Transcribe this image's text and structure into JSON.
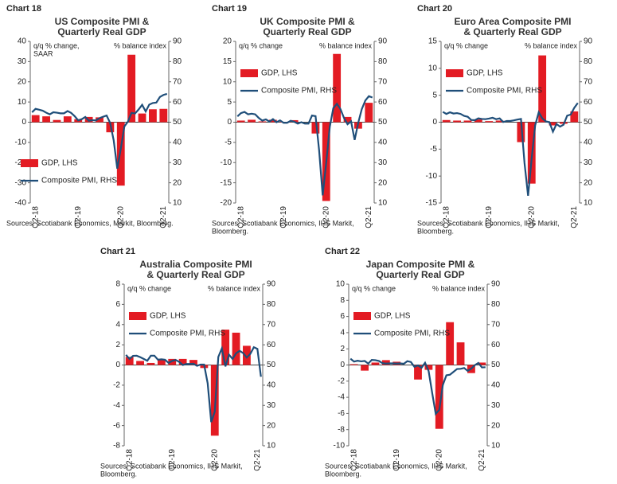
{
  "chart_data": [
    {
      "label": "Chart 18",
      "type": "bar",
      "title": [
        "US Composite PMI &",
        "Quarterly Real GDP"
      ],
      "y_label": [
        "q/q % change,",
        "SAAR"
      ],
      "y2_label": "% balance index",
      "categories": [
        null,
        "Q2-18",
        null,
        null,
        null,
        null,
        null,
        null,
        null,
        null,
        null,
        null,
        null,
        "Q2-19",
        null,
        null,
        null,
        null,
        null,
        null,
        null,
        null,
        null,
        null,
        null,
        "Q2-20",
        null,
        null,
        null,
        null,
        null,
        null,
        null,
        null,
        null,
        null,
        null,
        "Q2-21",
        null
      ],
      "series": [
        {
          "name": "GDP, LHS",
          "color": "#e31b23",
          "values": [
            null,
            3.5,
            null,
            null,
            2.9,
            null,
            null,
            1.1,
            null,
            null,
            2.9,
            null,
            null,
            1.5,
            null,
            null,
            2.6,
            null,
            null,
            2.4,
            null,
            null,
            -5.0,
            null,
            null,
            -31.4,
            null,
            null,
            33.4,
            null,
            null,
            4.3,
            null,
            null,
            6.4,
            null,
            null,
            6.6,
            null
          ]
        },
        {
          "name": "Composite PMI, RHS",
          "color": "#1f4e79",
          "type": "line",
          "axis": "y2",
          "values": [
            54.9,
            56.6,
            56.2,
            55.7,
            54.7,
            53.9,
            54.9,
            54.7,
            54.4,
            54.4,
            55.5,
            54.6,
            53.0,
            50.9,
            51.5,
            52.6,
            50.7,
            51.0,
            50.9,
            52.0,
            52.7,
            53.3,
            49.6,
            40.9,
            27.0,
            37.0,
            47.9,
            50.3,
            54.6,
            54.3,
            56.3,
            58.6,
            55.3,
            58.7,
            59.5,
            59.7,
            62.5,
            63.5,
            64.0
          ]
        }
      ],
      "ylim": [
        -40,
        40
      ],
      "yticks": [
        -40,
        -30,
        -20,
        -10,
        0,
        10,
        20,
        30,
        40
      ],
      "y2lim": [
        10,
        90
      ],
      "y2ticks": [
        10,
        20,
        30,
        40,
        50,
        60,
        70,
        80,
        90
      ],
      "legend": "lower left",
      "source": [
        "Sources: Scotiabank Economics, Markit, Bloomberg."
      ]
    },
    {
      "label": "Chart 19",
      "type": "bar",
      "title": [
        "UK Composite PMI &",
        "Quarterly Real GDP"
      ],
      "y_label": [
        "q/q % change"
      ],
      "y2_label": "% balance index",
      "categories": [
        null,
        "Q2-18",
        null,
        null,
        null,
        null,
        null,
        null,
        null,
        null,
        null,
        null,
        null,
        "Q2-19",
        null,
        null,
        null,
        null,
        null,
        null,
        null,
        null,
        null,
        null,
        null,
        "Q2-20",
        null,
        null,
        null,
        null,
        null,
        null,
        null,
        null,
        null,
        null,
        null,
        "Q2-21",
        null
      ],
      "series": [
        {
          "name": "GDP, LHS",
          "color": "#e31b23",
          "values": [
            null,
            0.4,
            null,
            null,
            0.6,
            null,
            null,
            0.2,
            null,
            null,
            0.6,
            null,
            null,
            -0.1,
            null,
            null,
            0.5,
            null,
            null,
            0.0,
            null,
            null,
            -2.8,
            null,
            null,
            -19.5,
            null,
            null,
            16.9,
            null,
            null,
            1.3,
            null,
            null,
            -1.6,
            null,
            null,
            4.8,
            null
          ]
        },
        {
          "name": "Composite PMI, RHS",
          "color": "#1f4e79",
          "type": "line",
          "axis": "y2",
          "values": [
            52.9,
            54.5,
            55.1,
            53.9,
            54.2,
            53.9,
            52.1,
            50.8,
            51.4,
            50.3,
            51.5,
            50.0,
            50.9,
            49.7,
            49.7,
            50.7,
            50.2,
            49.3,
            50.0,
            49.3,
            49.3,
            53.3,
            53.0,
            36.0,
            13.8,
            30.0,
            47.7,
            57.0,
            59.1,
            56.5,
            52.1,
            49.0,
            50.4,
            41.2,
            49.6,
            56.4,
            60.7,
            62.9,
            62.2
          ]
        }
      ],
      "ylim": [
        -20,
        20
      ],
      "yticks": [
        -20,
        -15,
        -10,
        -5,
        0,
        5,
        10,
        15,
        20
      ],
      "y2lim": [
        10,
        90
      ],
      "y2ticks": [
        10,
        20,
        30,
        40,
        50,
        60,
        70,
        80,
        90
      ],
      "legend": "upper left",
      "source": [
        "Sources: Scotiabank Economics, IHS Markit,",
        "Bloomberg."
      ]
    },
    {
      "label": "Chart 20",
      "type": "bar",
      "title": [
        "Euro Area Composite PMI",
        "& Quarterly Real GDP"
      ],
      "y_label": [
        "q/q % change"
      ],
      "y2_label": "% balance index",
      "categories": [
        null,
        "Q2-18",
        null,
        null,
        null,
        null,
        null,
        null,
        null,
        null,
        null,
        null,
        null,
        "Q2-19",
        null,
        null,
        null,
        null,
        null,
        null,
        null,
        null,
        null,
        null,
        null,
        "Q2-20",
        null,
        null,
        null,
        null,
        null,
        null,
        null,
        null,
        null,
        null,
        null,
        "Q2-21",
        null
      ],
      "series": [
        {
          "name": "GDP, LHS",
          "color": "#e31b23",
          "values": [
            null,
            0.4,
            null,
            null,
            0.3,
            null,
            null,
            0.3,
            null,
            null,
            0.5,
            null,
            null,
            0.2,
            null,
            null,
            0.3,
            null,
            null,
            0.0,
            null,
            null,
            -3.7,
            null,
            null,
            -11.4,
            null,
            null,
            12.4,
            null,
            null,
            -0.6,
            null,
            null,
            -0.3,
            null,
            null,
            2.0,
            null
          ]
        },
        {
          "name": "Composite PMI, RHS",
          "color": "#1f4e79",
          "type": "line",
          "axis": "y2",
          "values": [
            55.1,
            54.1,
            54.9,
            54.3,
            54.5,
            54.1,
            53.1,
            52.7,
            51.1,
            51.0,
            51.9,
            51.6,
            51.5,
            51.8,
            52.2,
            51.5,
            51.9,
            50.1,
            50.6,
            50.6,
            50.9,
            51.3,
            51.6,
            29.7,
            13.6,
            31.9,
            48.5,
            54.9,
            51.9,
            50.4,
            50.0,
            45.3,
            49.1,
            47.8,
            48.8,
            53.2,
            53.8,
            57.1,
            59.5
          ]
        }
      ],
      "ylim": [
        -15,
        15
      ],
      "yticks": [
        -15,
        -10,
        -5,
        0,
        5,
        10,
        15
      ],
      "y2lim": [
        10,
        90
      ],
      "y2ticks": [
        10,
        20,
        30,
        40,
        50,
        60,
        70,
        80,
        90
      ],
      "legend": "upper left",
      "source": [
        "Sources: Scotiabank Economics, IHS Markit,",
        "Bloomberg."
      ]
    },
    {
      "label": "Chart 21",
      "type": "bar",
      "title": [
        "Australia Composite PMI",
        "& Quarterly Real GDP"
      ],
      "y_label": [
        "q/q % change"
      ],
      "y2_label": "% balance index",
      "categories": [
        null,
        "Q2-18",
        null,
        null,
        null,
        null,
        null,
        null,
        null,
        null,
        null,
        null,
        null,
        "Q2-19",
        null,
        null,
        null,
        null,
        null,
        null,
        null,
        null,
        null,
        null,
        null,
        "Q2-20",
        null,
        null,
        null,
        null,
        null,
        null,
        null,
        null,
        null,
        null,
        null,
        "Q2-21",
        null
      ],
      "series": [
        {
          "name": "GDP, LHS",
          "color": "#e31b23",
          "values": [
            null,
            0.8,
            null,
            null,
            0.4,
            null,
            null,
            0.2,
            null,
            null,
            0.5,
            null,
            null,
            0.6,
            null,
            null,
            0.6,
            null,
            null,
            0.5,
            null,
            null,
            -0.3,
            null,
            null,
            -7.0,
            null,
            null,
            3.5,
            null,
            null,
            3.2,
            null,
            null,
            1.9,
            null,
            null,
            null,
            null
          ]
        },
        {
          "name": "Composite PMI, RHS",
          "color": "#1f4e79",
          "type": "line",
          "axis": "y2",
          "values": [
            55.0,
            53.0,
            54.5,
            54.6,
            53.9,
            53.0,
            52.1,
            54.6,
            54.6,
            52.6,
            52.8,
            52.6,
            51.0,
            52.0,
            52.5,
            51.5,
            50.0,
            50.5,
            50.5,
            50.6,
            49.6,
            50.2,
            50.2,
            40.9,
            21.7,
            26.9,
            54.0,
            58.2,
            49.3,
            55.1,
            53.0,
            55.8,
            57.0,
            55.9,
            53.7,
            55.5,
            58.8,
            58.0,
            44.2
          ]
        }
      ],
      "ylim": [
        -8,
        8
      ],
      "yticks": [
        -8,
        -6,
        -4,
        -2,
        0,
        2,
        4,
        6,
        8
      ],
      "y2lim": [
        10,
        90
      ],
      "y2ticks": [
        10,
        20,
        30,
        40,
        50,
        60,
        70,
        80,
        90
      ],
      "legend": "upper left",
      "source": [
        "Sources: Scotiabank Economics, IHS Markit,",
        "Bloomberg."
      ]
    },
    {
      "label": "Chart 22",
      "type": "bar",
      "title": [
        "Japan Composite PMI &",
        "Quarterly Real GDP"
      ],
      "y_label": [
        "q/q % change"
      ],
      "y2_label": "% balance index",
      "categories": [
        null,
        "Q2-18",
        null,
        null,
        null,
        null,
        null,
        null,
        null,
        null,
        null,
        null,
        null,
        "Q2-19",
        null,
        null,
        null,
        null,
        null,
        null,
        null,
        null,
        null,
        null,
        null,
        "Q2-20",
        null,
        null,
        null,
        null,
        null,
        null,
        null,
        null,
        null,
        null,
        null,
        "Q2-21",
        null
      ],
      "series": [
        {
          "name": "GDP, LHS",
          "color": "#e31b23",
          "values": [
            null,
            0.1,
            null,
            null,
            -0.7,
            null,
            null,
            0.3,
            null,
            null,
            0.6,
            null,
            null,
            0.4,
            null,
            null,
            0.0,
            null,
            null,
            -1.8,
            null,
            null,
            -0.6,
            null,
            null,
            -7.9,
            null,
            null,
            5.3,
            null,
            null,
            2.8,
            null,
            null,
            -1.0,
            null,
            null,
            0.3,
            null
          ]
        },
        {
          "name": "Composite PMI, RHS",
          "color": "#1f4e79",
          "type": "line",
          "axis": "y2",
          "values": [
            53.1,
            51.7,
            52.1,
            51.8,
            52.0,
            50.7,
            52.5,
            52.4,
            52.0,
            50.9,
            50.7,
            50.8,
            50.8,
            50.7,
            50.8,
            50.6,
            51.9,
            51.5,
            49.1,
            49.8,
            48.6,
            51.1,
            47.0,
            36.2,
            25.8,
            27.8,
            40.1,
            44.9,
            45.2,
            46.6,
            48.0,
            48.1,
            48.5,
            47.1,
            48.2,
            49.9,
            51.0,
            48.8,
            48.9
          ]
        }
      ],
      "ylim": [
        -10,
        10
      ],
      "yticks": [
        -10,
        -8,
        -6,
        -4,
        -2,
        0,
        2,
        4,
        6,
        8,
        10
      ],
      "y2lim": [
        10,
        90
      ],
      "y2ticks": [
        10,
        20,
        30,
        40,
        50,
        60,
        70,
        80,
        90
      ],
      "legend": "upper left",
      "source": [
        "Sources: Scotiabank Economics, IHS Markit,",
        "Bloomberg."
      ]
    }
  ]
}
